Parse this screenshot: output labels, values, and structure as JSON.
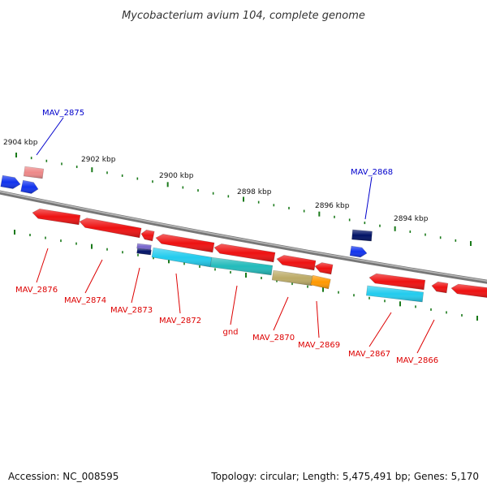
{
  "title": "Mycobacterium avium 104, complete genome",
  "ruler": [
    {
      "label": "2904 kbp"
    },
    {
      "label": "2902 kbp"
    },
    {
      "label": "2900 kbp"
    },
    {
      "label": "2898 kbp"
    },
    {
      "label": "2896 kbp"
    },
    {
      "label": "2894 kbp"
    }
  ],
  "labels": {
    "forward_strand": [
      "MAV_2875",
      "MAV_2868"
    ],
    "reverse_strand": [
      "MAV_2876",
      "MAV_2874",
      "MAV_2873",
      "MAV_2872",
      "gnd",
      "MAV_2870",
      "MAV_2869",
      "MAV_2867",
      "MAV_2866"
    ]
  },
  "colors": {
    "forward_label": "#0000cc",
    "reverse_label": "#dd0000",
    "backbone": "#888888",
    "tick": "#1a7a1a",
    "gene_red": "#ee1111",
    "gene_pink": "#ee8888",
    "gene_blue": "#1133ee",
    "gene_navy": "#001166",
    "gene_cyan": "#22ccee",
    "gene_teal": "#22bbbb",
    "gene_olive": "#bbaa66",
    "gene_orange": "#ff9900",
    "gene_purple": "#7766cc"
  },
  "footer": {
    "accession": "Accession: NC_008595",
    "summary": "Topology: circular; Length: 5,475,491 bp; Genes: 5,170"
  }
}
